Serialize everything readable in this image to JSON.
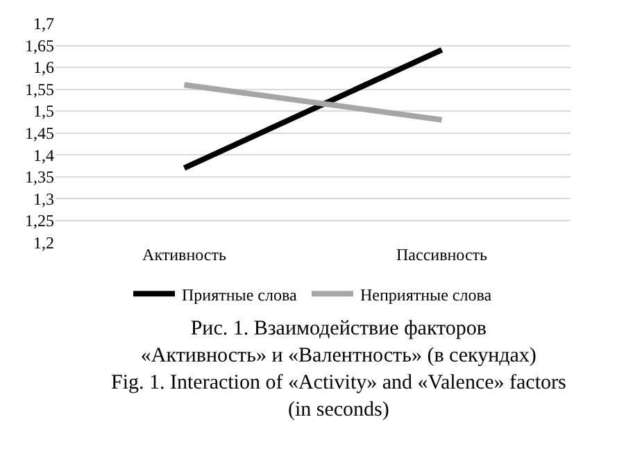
{
  "chart_data": {
    "type": "line",
    "categories": [
      "Активность",
      "Пассивность"
    ],
    "series": [
      {
        "name": "Приятные слова",
        "color": "#000000",
        "values": [
          1.37,
          1.64
        ]
      },
      {
        "name": "Неприятные слова",
        "color": "#a6a6a6",
        "values": [
          1.56,
          1.48
        ]
      }
    ],
    "ylim": [
      1.2,
      1.7
    ],
    "yticks": [
      {
        "value": 1.2,
        "label": "1,2"
      },
      {
        "value": 1.25,
        "label": "1,25"
      },
      {
        "value": 1.3,
        "label": "1,3"
      },
      {
        "value": 1.35,
        "label": "1,35"
      },
      {
        "value": 1.4,
        "label": "1,4"
      },
      {
        "value": 1.45,
        "label": "1,45"
      },
      {
        "value": 1.5,
        "label": "1,5"
      },
      {
        "value": 1.55,
        "label": "1,55"
      },
      {
        "value": 1.6,
        "label": "1,6"
      },
      {
        "value": 1.65,
        "label": "1,65"
      },
      {
        "value": 1.7,
        "label": "1,7"
      }
    ],
    "grid": "y",
    "legend": "bottom",
    "marker": "none",
    "line_style": "solid",
    "annotations": [
      "Рис. 1. Взаимодействие факторов\n«Активность» и «Валентность» (в секундах)\nFig. 1. Interaction of «Activity» and «Valence» factors\n(in seconds)"
    ]
  }
}
